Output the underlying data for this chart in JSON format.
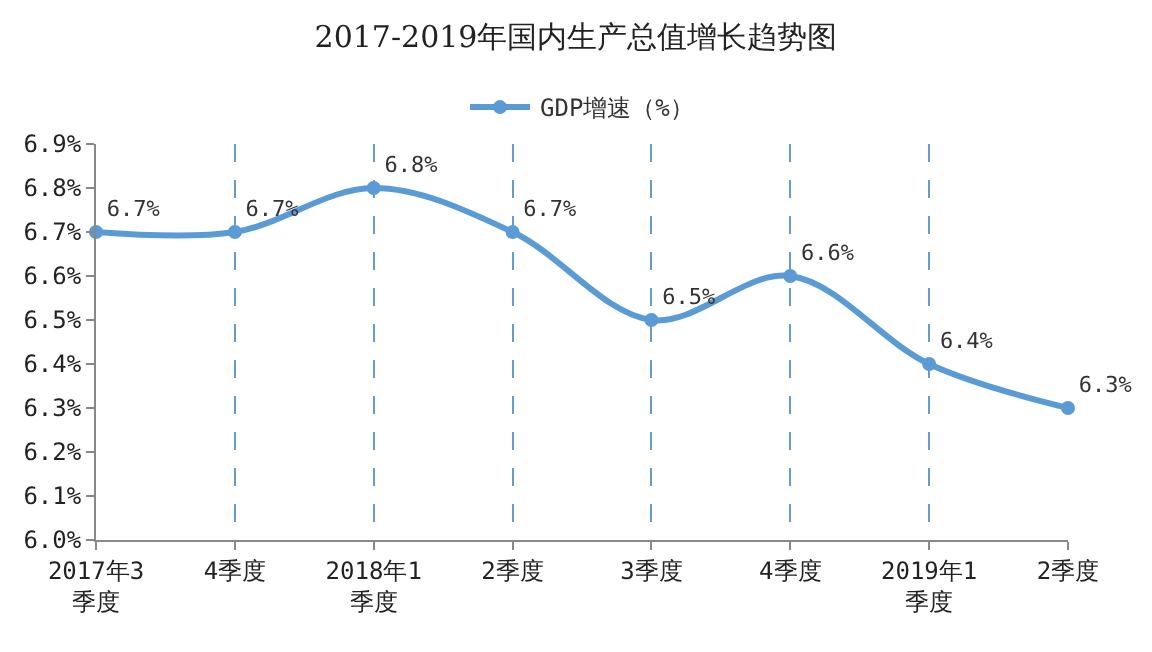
{
  "chart_data": {
    "type": "line",
    "title": "2017-2019年国内生产总值增长趋势图",
    "categories": [
      "2017年3季度",
      "4季度",
      "2018年1季度",
      "2季度",
      "3季度",
      "4季度",
      "2019年1季度",
      "2季度"
    ],
    "series": [
      {
        "name": "GDP增速（%）",
        "color": "#5b9bd5",
        "values": [
          6.7,
          6.7,
          6.8,
          6.7,
          6.5,
          6.6,
          6.4,
          6.3
        ],
        "value_labels": [
          "6.7%",
          "6.7%",
          "6.8%",
          "6.7%",
          "6.5%",
          "6.6%",
          "6.4%",
          "6.3%"
        ]
      }
    ],
    "ylim": [
      6.0,
      6.9
    ],
    "yticks": [
      {
        "value": 6.0,
        "label": "6.0%"
      },
      {
        "value": 6.1,
        "label": "6.1%"
      },
      {
        "value": 6.2,
        "label": "6.2%"
      },
      {
        "value": 6.3,
        "label": "6.3%"
      },
      {
        "value": 6.4,
        "label": "6.4%"
      },
      {
        "value": 6.5,
        "label": "6.5%"
      },
      {
        "value": 6.6,
        "label": "6.6%"
      },
      {
        "value": 6.7,
        "label": "6.7%"
      },
      {
        "value": 6.8,
        "label": "6.8%"
      },
      {
        "value": 6.9,
        "label": "6.9%"
      }
    ],
    "grid": "x",
    "legend": "top",
    "marker": "circle",
    "line_style": "solid"
  }
}
